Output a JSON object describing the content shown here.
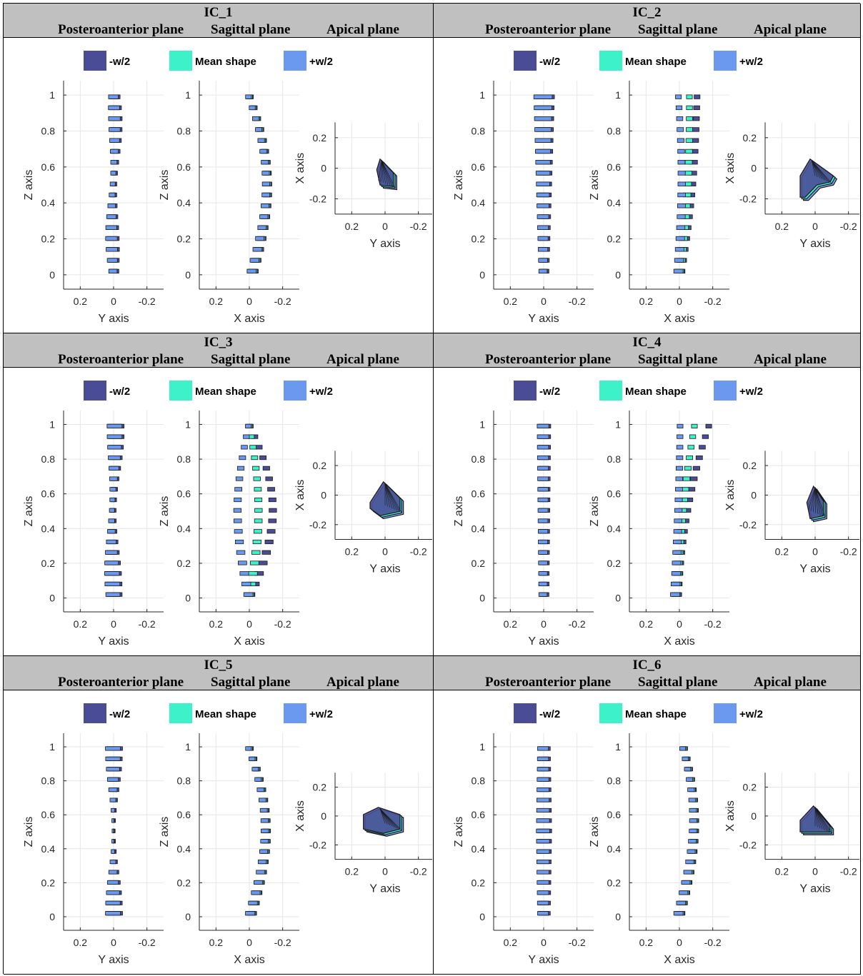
{
  "panels": [
    {
      "id": "IC_1",
      "planes": [
        "Posteroanterior plane",
        "Sagittal plane",
        "Apical plane"
      ]
    },
    {
      "id": "IC_2",
      "planes": [
        "Posteroanterior plane",
        "Sagittal plane",
        "Apical plane"
      ]
    },
    {
      "id": "IC_3",
      "planes": [
        "Posteroanterior plane",
        "Sagittal plane",
        "Apical plane"
      ]
    },
    {
      "id": "IC_4",
      "planes": [
        "Posteroanterior plane",
        "Sagittal plane",
        "Apical plane"
      ]
    },
    {
      "id": "IC_5",
      "planes": [
        "Posteroanterior plane",
        "Sagittal plane",
        "Apical plane"
      ]
    },
    {
      "id": "IC_6",
      "planes": [
        "Posteroanterior plane",
        "Sagittal plane",
        "Apical plane"
      ]
    }
  ],
  "legend": [
    {
      "label": "-w/2",
      "color": "#4b4c96"
    },
    {
      "label": "Mean shape",
      "color": "#3df2c8"
    },
    {
      "label": "+w/2",
      "color": "#6b99f0"
    }
  ],
  "axes": {
    "posteroanterior": {
      "xlabel": "Y axis",
      "ylabel": "Z axis",
      "xticks": [
        "0.2",
        "0",
        "-0.2"
      ],
      "yticks": [
        "0",
        "0.2",
        "0.4",
        "0.6",
        "0.8",
        "1"
      ],
      "xlim": [
        0.3,
        -0.3
      ],
      "ylim": [
        -0.08,
        1.08
      ]
    },
    "sagittal": {
      "xlabel": "X axis",
      "ylabel": "Z axis",
      "xticks": [
        "0.2",
        "0",
        "-0.2"
      ],
      "yticks": [
        "0",
        "0.2",
        "0.4",
        "0.6",
        "0.8",
        "1"
      ],
      "xlim": [
        0.3,
        -0.3
      ],
      "ylim": [
        -0.08,
        1.08
      ]
    },
    "apical": {
      "xlabel": "Y axis",
      "ylabel": "X axis",
      "xticks": [
        "0.2",
        "0",
        "-0.2"
      ],
      "yticks": [
        "-0.2",
        "0",
        "0.2"
      ],
      "xlim": [
        0.3,
        -0.3
      ],
      "ylim": [
        -0.3,
        0.3
      ]
    }
  },
  "chart_data": [
    {
      "type": "scatter",
      "panel": "IC_1",
      "view": "posteroanterior",
      "series": [
        {
          "name": "-w/2",
          "y_shift": [
            0.0,
            -0.02,
            -0.03
          ],
          "x_offset": 0.0
        },
        {
          "name": "Mean shape",
          "y_shift": [
            0.0,
            -0.01,
            -0.02
          ],
          "x_offset": 0.0
        },
        {
          "name": "+w/2",
          "y_shift": [
            0.0,
            0.0,
            0.0
          ],
          "x_offset": 0.0
        }
      ]
    },
    {
      "type": "scatter",
      "panel": "IC_1",
      "view": "sagittal",
      "series": [
        {
          "name": "-w/2",
          "x_at_top": -0.06,
          "x_at_mid": -0.1,
          "x_at_bottom": 0.0
        },
        {
          "name": "Mean shape",
          "x_at_top": -0.06,
          "x_at_mid": -0.1,
          "x_at_bottom": 0.0
        },
        {
          "name": "+w/2",
          "x_at_top": -0.06,
          "x_at_mid": -0.1,
          "x_at_bottom": 0.0
        }
      ]
    },
    {
      "type": "scatter",
      "panel": "IC_2",
      "view": "posteroanterior",
      "series": [
        {
          "name": "-w/2",
          "x_offset": 0.0
        },
        {
          "name": "Mean shape",
          "x_offset": 0.0
        },
        {
          "name": "+w/2",
          "x_offset": 0.0
        }
      ]
    },
    {
      "type": "scatter",
      "panel": "IC_2",
      "view": "sagittal",
      "series": [
        {
          "name": "-w/2",
          "x_at_top": -0.1,
          "x_at_bottom": 0.0
        },
        {
          "name": "Mean shape",
          "x_at_top": -0.06,
          "x_at_bottom": 0.0
        },
        {
          "name": "+w/2",
          "x_at_top": 0.0,
          "x_at_bottom": 0.0
        }
      ]
    },
    {
      "type": "scatter",
      "panel": "IC_3",
      "view": "sagittal",
      "series": [
        {
          "name": "-w/2",
          "x_at_mid": -0.12,
          "x_at_bottom": 0.0
        },
        {
          "name": "Mean shape",
          "x_at_mid": -0.04,
          "x_at_bottom": 0.0
        },
        {
          "name": "+w/2",
          "x_at_mid": 0.08,
          "x_at_bottom": 0.0
        }
      ]
    },
    {
      "type": "scatter",
      "panel": "IC_4",
      "view": "sagittal",
      "series": [
        {
          "name": "-w/2",
          "x_at_top": -0.14,
          "x_at_bottom": 0.0
        },
        {
          "name": "Mean shape",
          "x_at_top": -0.06,
          "x_at_bottom": 0.0
        },
        {
          "name": "+w/2",
          "x_at_top": 0.02,
          "x_at_bottom": 0.0
        }
      ]
    },
    {
      "type": "scatter",
      "panel": "IC_5",
      "view": "sagittal",
      "series": [
        {
          "name": "-w/2",
          "x_at_top": -0.06,
          "x_at_mid": -0.1,
          "x_at_bottom": 0.0
        },
        {
          "name": "Mean shape",
          "x_at_top": -0.06,
          "x_at_mid": -0.1,
          "x_at_bottom": 0.0
        },
        {
          "name": "+w/2",
          "x_at_top": -0.06,
          "x_at_mid": -0.1,
          "x_at_bottom": 0.0
        }
      ]
    },
    {
      "type": "scatter",
      "panel": "IC_6",
      "view": "sagittal",
      "series": [
        {
          "name": "-w/2",
          "x_at_top": -0.08,
          "x_at_mid": -0.1,
          "x_at_bottom": 0.0
        },
        {
          "name": "Mean shape",
          "x_at_top": -0.08,
          "x_at_mid": -0.1,
          "x_at_bottom": 0.0
        },
        {
          "name": "+w/2",
          "x_at_top": -0.08,
          "x_at_mid": -0.1,
          "x_at_bottom": 0.0
        }
      ]
    }
  ]
}
